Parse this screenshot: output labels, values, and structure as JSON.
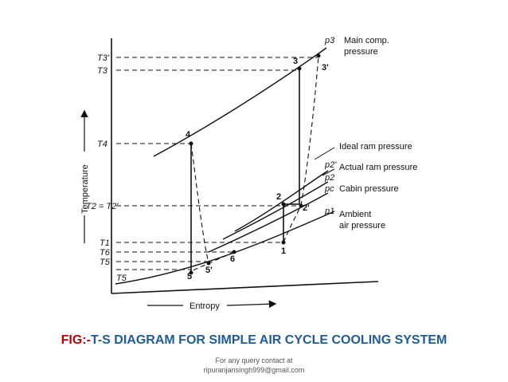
{
  "axes": {
    "x_label": "Entropy",
    "y_label": "Temperature"
  },
  "temperature_ticks": [
    "T3'",
    "T3",
    "T4",
    "T2 = T2'",
    "T1",
    "T6",
    "T5'",
    "T5"
  ],
  "points": [
    "1",
    "2",
    "2'",
    "3",
    "3'",
    "4",
    "5",
    "5'",
    "6"
  ],
  "pressure_curves": [
    {
      "symbol": "p3",
      "label_line1": "Main comp.",
      "label_line2": "pressure"
    },
    {
      "symbol": "p2'",
      "label_line1": "Ideal ram pressure"
    },
    {
      "symbol": "p2",
      "label_line1": "Actual ram pressure"
    },
    {
      "symbol": "pc",
      "label_line1": "Cabin pressure"
    },
    {
      "symbol": "p1",
      "label_line1": "Ambient",
      "label_line2": "air pressure"
    }
  ],
  "caption": {
    "prefix": "FIG:-",
    "text": "T-S DIAGRAM FOR SIMPLE AIR CYCLE COOLING SYSTEM"
  },
  "footer": {
    "line1": "For any query contact at",
    "line2": "ripuranjansingh999@gmail.com"
  },
  "colors": {
    "caption_prefix": "#c00000",
    "caption_text": "#1f5c99"
  }
}
